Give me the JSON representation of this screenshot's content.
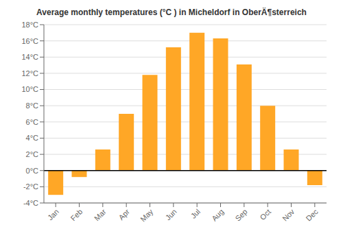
{
  "chart_data": {
    "type": "bar",
    "title": "Average monthly temperatures (°C ) in Micheldorf in OberÄ¶sterreich",
    "categories": [
      "Jan",
      "Feb",
      "Mar",
      "Apr",
      "May",
      "Jun",
      "Jul",
      "Aug",
      "Sep",
      "Oct",
      "Nov",
      "Dec"
    ],
    "values": [
      -3.0,
      -0.8,
      2.6,
      7.0,
      11.8,
      15.2,
      17.0,
      16.3,
      13.1,
      8.0,
      2.6,
      -1.8
    ],
    "color": "#FFA726",
    "ylim": [
      -4,
      18
    ],
    "yticks": [
      {
        "value": -4,
        "label": "-4°C"
      },
      {
        "value": -2,
        "label": "-2°C"
      },
      {
        "value": 0,
        "label": "0°C"
      },
      {
        "value": 2,
        "label": "2°C"
      },
      {
        "value": 4,
        "label": "4°C"
      },
      {
        "value": 6,
        "label": "6°C"
      },
      {
        "value": 8,
        "label": "8°C"
      },
      {
        "value": 10,
        "label": "10°C"
      },
      {
        "value": 12,
        "label": "12°C"
      },
      {
        "value": 14,
        "label": "14°C"
      },
      {
        "value": 16,
        "label": "16°C"
      },
      {
        "value": 18,
        "label": "18°C"
      }
    ],
    "grid": true
  }
}
